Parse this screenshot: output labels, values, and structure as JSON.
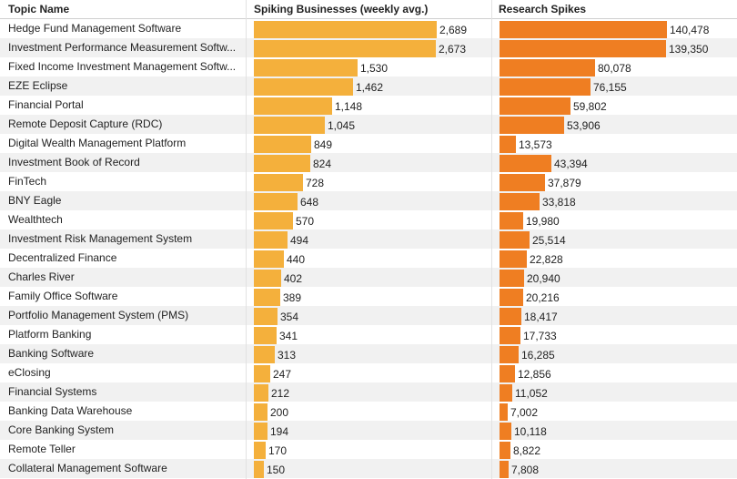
{
  "chart_data": {
    "type": "table",
    "columns": {
      "topic": "Topic Name",
      "businesses": "Spiking Businesses (weekly avg.)",
      "research": "Research Spikes"
    },
    "colors": {
      "businesses": "#f4b03c",
      "research": "#ef7e22",
      "stripe": "#f1f1f1"
    },
    "rows": [
      {
        "topic": "Hedge Fund Management Software",
        "businesses": 2689,
        "businesses_label": "2,689",
        "research": 140478,
        "research_label": "140,478"
      },
      {
        "topic": "Investment Performance Measurement Softw...",
        "businesses": 2673,
        "businesses_label": "2,673",
        "research": 139350,
        "research_label": "139,350"
      },
      {
        "topic": "Fixed Income Investment Management Softw...",
        "businesses": 1530,
        "businesses_label": "1,530",
        "research": 80078,
        "research_label": "80,078"
      },
      {
        "topic": "EZE Eclipse",
        "businesses": 1462,
        "businesses_label": "1,462",
        "research": 76155,
        "research_label": "76,155"
      },
      {
        "topic": "Financial Portal",
        "businesses": 1148,
        "businesses_label": "1,148",
        "research": 59802,
        "research_label": "59,802"
      },
      {
        "topic": "Remote Deposit Capture (RDC)",
        "businesses": 1045,
        "businesses_label": "1,045",
        "research": 53906,
        "research_label": "53,906"
      },
      {
        "topic": "Digital Wealth Management Platform",
        "businesses": 849,
        "businesses_label": "849",
        "research": 13573,
        "research_label": "13,573"
      },
      {
        "topic": "Investment Book of Record",
        "businesses": 824,
        "businesses_label": "824",
        "research": 43394,
        "research_label": "43,394"
      },
      {
        "topic": "FinTech",
        "businesses": 728,
        "businesses_label": "728",
        "research": 37879,
        "research_label": "37,879"
      },
      {
        "topic": "BNY Eagle",
        "businesses": 648,
        "businesses_label": "648",
        "research": 33818,
        "research_label": "33,818"
      },
      {
        "topic": "Wealthtech",
        "businesses": 570,
        "businesses_label": "570",
        "research": 19980,
        "research_label": "19,980"
      },
      {
        "topic": "Investment Risk Management System",
        "businesses": 494,
        "businesses_label": "494",
        "research": 25514,
        "research_label": "25,514"
      },
      {
        "topic": "Decentralized Finance",
        "businesses": 440,
        "businesses_label": "440",
        "research": 22828,
        "research_label": "22,828"
      },
      {
        "topic": "Charles River",
        "businesses": 402,
        "businesses_label": "402",
        "research": 20940,
        "research_label": "20,940"
      },
      {
        "topic": "Family Office Software",
        "businesses": 389,
        "businesses_label": "389",
        "research": 20216,
        "research_label": "20,216"
      },
      {
        "topic": "Portfolio Management System (PMS)",
        "businesses": 354,
        "businesses_label": "354",
        "research": 18417,
        "research_label": "18,417"
      },
      {
        "topic": "Platform Banking",
        "businesses": 341,
        "businesses_label": "341",
        "research": 17733,
        "research_label": "17,733"
      },
      {
        "topic": "Banking Software",
        "businesses": 313,
        "businesses_label": "313",
        "research": 16285,
        "research_label": "16,285"
      },
      {
        "topic": "eClosing",
        "businesses": 247,
        "businesses_label": "247",
        "research": 12856,
        "research_label": "12,856"
      },
      {
        "topic": "Financial Systems",
        "businesses": 212,
        "businesses_label": "212",
        "research": 11052,
        "research_label": "11,052"
      },
      {
        "topic": "Banking Data Warehouse",
        "businesses": 200,
        "businesses_label": "200",
        "research": 7002,
        "research_label": "7,002"
      },
      {
        "topic": "Core Banking System",
        "businesses": 194,
        "businesses_label": "194",
        "research": 10118,
        "research_label": "10,118"
      },
      {
        "topic": "Remote Teller",
        "businesses": 170,
        "businesses_label": "170",
        "research": 8822,
        "research_label": "8,822"
      },
      {
        "topic": "Collateral Management Software",
        "businesses": 150,
        "businesses_label": "150",
        "research": 7808,
        "research_label": "7,808"
      }
    ]
  }
}
